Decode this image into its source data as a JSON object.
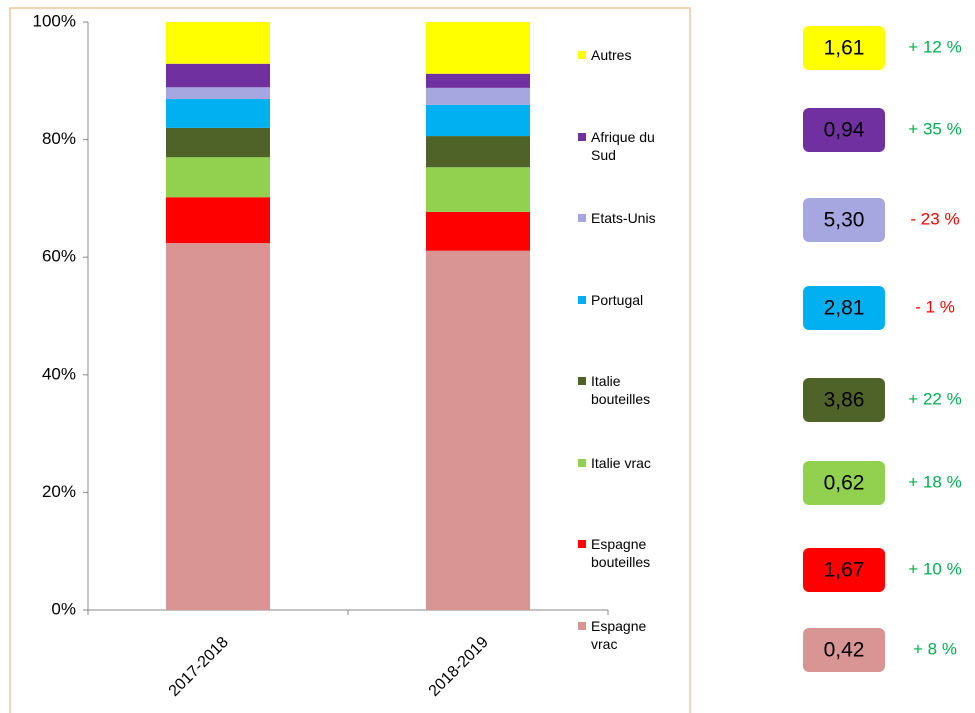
{
  "chart_data": {
    "type": "stacked_bar_100",
    "categories": [
      "2017-2018",
      "2018-2019"
    ],
    "series": [
      {
        "name": "Espagne vrac",
        "color": "#d99594",
        "values": [
          62.4,
          61.1
        ]
      },
      {
        "name": "Espagne bouteilles",
        "color": "#ff0000",
        "values": [
          7.8,
          6.6
        ]
      },
      {
        "name": "Italie vrac",
        "color": "#92d050",
        "values": [
          6.8,
          7.6
        ]
      },
      {
        "name": "Italie bouteilles",
        "color": "#4f6228",
        "values": [
          5.0,
          5.3
        ]
      },
      {
        "name": "Portugal",
        "color": "#00b0f0",
        "values": [
          4.9,
          5.3
        ]
      },
      {
        "name": "Etats-Unis",
        "color": "#a6a6e0",
        "values": [
          2.0,
          2.9
        ]
      },
      {
        "name": "Afrique du Sud",
        "color": "#7030a0",
        "values": [
          4.0,
          2.4
        ]
      },
      {
        "name": "Autres",
        "color": "#ffff00",
        "values": [
          7.1,
          8.8
        ]
      }
    ],
    "ylim": [
      0,
      100
    ],
    "yticks": [
      {
        "value": 0,
        "label": "0%"
      },
      {
        "value": 20,
        "label": "20%"
      },
      {
        "value": 40,
        "label": "40%"
      },
      {
        "value": 60,
        "label": "60%"
      },
      {
        "value": 80,
        "label": "80%"
      },
      {
        "value": 100,
        "label": "100%"
      }
    ],
    "side_labels": [
      {
        "text": "0,42",
        "change": "+ 8 %",
        "change_color": "#00b050"
      },
      {
        "text": "1,67",
        "change": "+ 10 %",
        "change_color": "#00b050"
      },
      {
        "text": "0,62",
        "change": "+ 18 %",
        "change_color": "#00b050"
      },
      {
        "text": "3,86",
        "change": "+ 22 %",
        "change_color": "#00b050"
      },
      {
        "text": "2,81",
        "change": "- 1 %",
        "change_color": "#ff0000"
      },
      {
        "text": "5,30",
        "change": "- 23 %",
        "change_color": "#ff0000"
      },
      {
        "text": "0,94",
        "change": "+ 35 %",
        "change_color": "#00b050"
      },
      {
        "text": "1,61",
        "change": "+ 12 %",
        "change_color": "#00b050"
      }
    ]
  }
}
